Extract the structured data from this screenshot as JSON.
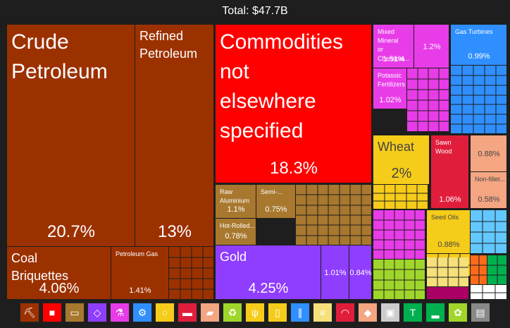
{
  "header": {
    "total": "Total: $47.7B"
  },
  "chart_data": {
    "type": "treemap",
    "total": "$47.7B",
    "items": [
      {
        "label": "Crude Petroleum",
        "value": "20.7%",
        "color": "#9c3100",
        "tier": "xl"
      },
      {
        "label": "Refined Petroleum",
        "value": "13%",
        "color": "#9c3100",
        "tier": "l"
      },
      {
        "label": "Coal Briquettes",
        "value": "4.06%",
        "color": "#9c3100",
        "tier": "m"
      },
      {
        "label": "Petroleum Gas",
        "value": "1.41%",
        "color": "#9c3100",
        "tier": "s"
      },
      {
        "label": "",
        "value": "",
        "color": "#9c3100",
        "tier": "n"
      },
      {
        "label": "Commodities not elsewhere specified",
        "value": "18.3%",
        "color": "#ff0000",
        "tier": "xl"
      },
      {
        "label": "Raw Aluminium",
        "value": "1.1%",
        "color": "#a8782e",
        "tier": "s"
      },
      {
        "label": "Semi-...",
        "value": "0.75%",
        "color": "#a8782e",
        "tier": "s"
      },
      {
        "label": "Hot-Rolled...",
        "value": "0.78%",
        "color": "#a8782e",
        "tier": "s"
      },
      {
        "label": "",
        "value": "",
        "color": "#a8782e",
        "tier": "n"
      },
      {
        "label": "Gold",
        "value": "4.25%",
        "color": "#8f3dff",
        "tier": "m"
      },
      {
        "label": "",
        "value": "1.01%",
        "color": "#8f3dff",
        "tier": "s"
      },
      {
        "label": "",
        "value": "0.84%",
        "color": "#8f3dff",
        "tier": "s"
      },
      {
        "label": "Mixed Mineral or Chemical...",
        "value": "1.51%",
        "color": "#e83ce8",
        "tier": "s"
      },
      {
        "label": "",
        "value": "1.2%",
        "color": "#e83ce8",
        "tier": "s"
      },
      {
        "label": "Potassic Fertilizers",
        "value": "1.02%",
        "color": "#e83ce8",
        "tier": "s"
      },
      {
        "label": "",
        "value": "",
        "color": "#e83ce8",
        "tier": "n"
      },
      {
        "label": "Gas Turbines",
        "value": "0.99%",
        "color": "#2f8fff",
        "tier": "s"
      },
      {
        "label": "",
        "value": "",
        "color": "#2f8fff",
        "tier": "n"
      },
      {
        "label": "Wheat",
        "value": "2%",
        "color": "#f6cc1a",
        "tier": "m"
      },
      {
        "label": "",
        "value": "",
        "color": "#f6cc1a",
        "tier": "n"
      },
      {
        "label": "Sawn Wood",
        "value": "1.06%",
        "color": "#e01e3c",
        "tier": "s"
      },
      {
        "label": "",
        "value": "0.88%",
        "color": "#f4a582",
        "tier": "s"
      },
      {
        "label": "Non-fillet...",
        "value": "0.58%",
        "color": "#f4a582",
        "tier": "s"
      },
      {
        "label": "Seed Oils",
        "value": "0.88%",
        "color": "#f6cc1a",
        "tier": "s"
      },
      {
        "label": "",
        "value": "",
        "color": "#f6cc1a",
        "tier": "n"
      },
      {
        "label": "",
        "value": "",
        "color": "#e83ce8",
        "tier": "n"
      },
      {
        "label": "",
        "value": "",
        "color": "#62c8ff",
        "tier": "n"
      },
      {
        "label": "",
        "value": "",
        "color": "#a0d62b",
        "tier": "n"
      },
      {
        "label": "",
        "value": "",
        "color": "#f5e07a",
        "tier": "n"
      },
      {
        "label": "",
        "value": "",
        "color": "#aa0066",
        "tier": "n"
      },
      {
        "label": "",
        "value": "",
        "color": "#ff6a1a",
        "tier": "n"
      },
      {
        "label": "",
        "value": "",
        "color": "#00b04f",
        "tier": "n"
      },
      {
        "label": "",
        "value": "",
        "color": "#ffffff",
        "tier": "n"
      }
    ]
  },
  "legend": [
    {
      "icon": "mineral-icon",
      "glyph": "⛏",
      "color": "#9c3100"
    },
    {
      "icon": "commodity-icon",
      "glyph": "■",
      "color": "#ff0000"
    },
    {
      "icon": "metals-icon",
      "glyph": "▭",
      "color": "#a8782e"
    },
    {
      "icon": "gem-icon",
      "glyph": "◇",
      "color": "#8f3dff"
    },
    {
      "icon": "chemical-icon",
      "glyph": "⚗",
      "color": "#e83ce8"
    },
    {
      "icon": "machine-icon",
      "glyph": "⚙",
      "color": "#2f8fff"
    },
    {
      "icon": "animal-icon",
      "glyph": "○",
      "color": "#f6cc1a"
    },
    {
      "icon": "plastic-icon",
      "glyph": "▬",
      "color": "#e01e3c"
    },
    {
      "icon": "animal-hide-icon",
      "glyph": "▰",
      "color": "#f4a582"
    },
    {
      "icon": "recycle-icon",
      "glyph": "♻",
      "color": "#a0d62b"
    },
    {
      "icon": "vegetable-icon",
      "glyph": "ψ",
      "color": "#f6cc1a"
    },
    {
      "icon": "foodstuff-icon",
      "glyph": "▯",
      "color": "#f6cc1a"
    },
    {
      "icon": "transport-icon",
      "glyph": "∥",
      "color": "#2f8fff"
    },
    {
      "icon": "paper-icon",
      "glyph": "≡",
      "color": "#f5e07a"
    },
    {
      "icon": "instrument-icon",
      "glyph": "◠",
      "color": "#e01e3c"
    },
    {
      "icon": "stone-icon",
      "glyph": "◆",
      "color": "#f4a582"
    },
    {
      "icon": "wood-icon",
      "glyph": "▣",
      "color": "#cccccc"
    },
    {
      "icon": "textile-icon",
      "glyph": "T",
      "color": "#00b04f"
    },
    {
      "icon": "footwear-icon",
      "glyph": "▂",
      "color": "#00b04f"
    },
    {
      "icon": "animal-product-icon",
      "glyph": "✿",
      "color": "#a0d62b"
    },
    {
      "icon": "art-icon",
      "glyph": "▤",
      "color": "#888888"
    }
  ]
}
